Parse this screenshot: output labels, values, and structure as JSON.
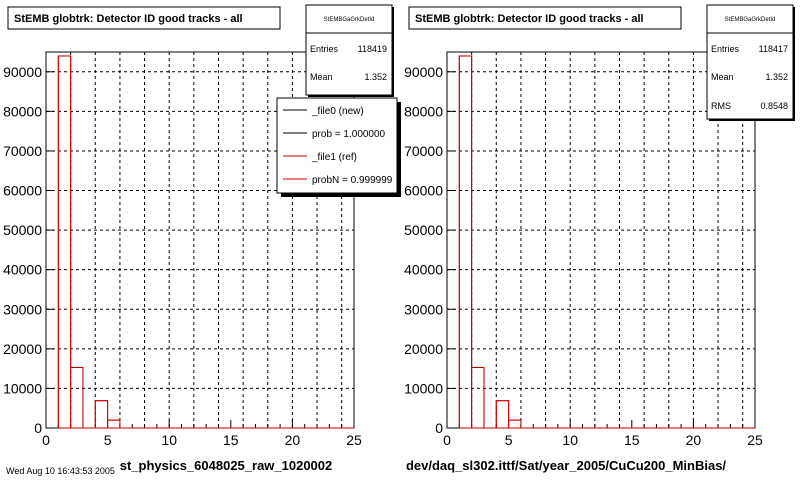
{
  "chart_data": [
    {
      "type": "bar",
      "title": "StEMB globtrk: Detector ID good tracks - all",
      "xlabel": "st_physics_6048025_raw_1020002",
      "xlim": [
        0,
        25
      ],
      "ylim": [
        0,
        95000
      ],
      "xticks": [
        0,
        5,
        10,
        15,
        20,
        25
      ],
      "yticks": [
        0,
        10000,
        20000,
        30000,
        40000,
        50000,
        60000,
        70000,
        80000,
        90000
      ],
      "ytick_labels": [
        "0",
        "10000",
        "20000",
        "30000",
        "40000",
        "50000",
        "60000",
        "70000",
        "80000",
        "90000"
      ],
      "bin_width": 1,
      "bin_edges_start": 1,
      "values": [
        94000,
        15300,
        0,
        6900,
        2000,
        0,
        0,
        0,
        0,
        0,
        0,
        0,
        0,
        0,
        0,
        0,
        0,
        0,
        0,
        0,
        0,
        0,
        0,
        0
      ],
      "stats": {
        "name": "StEMBGaGrkDetId",
        "entries_label": "Entries",
        "entries": "118419",
        "mean_label": "Mean",
        "mean": "1.352"
      },
      "legend": {
        "position": "top-right",
        "entries": [
          {
            "label": "_file0 (new)",
            "color": "#000000"
          },
          {
            "label": "prob = 1.000000",
            "color": "#000000"
          },
          {
            "label": "_file1 (ref)",
            "color": "#cc0000"
          },
          {
            "label": "probN = 0.999999",
            "color": "#cc0000"
          }
        ]
      },
      "grid": true,
      "color": "#cc0000"
    },
    {
      "type": "bar",
      "title": "StEMB globtrk: Detector ID good tracks - all",
      "xlabel": "dev/daq_sl302.ittf/Sat/year_2005/CuCu200_MinBias/",
      "xlim": [
        0,
        25
      ],
      "ylim": [
        0,
        95000
      ],
      "xticks": [
        0,
        5,
        10,
        15,
        20,
        25
      ],
      "yticks": [
        0,
        10000,
        20000,
        30000,
        40000,
        50000,
        60000,
        70000,
        80000,
        90000
      ],
      "ytick_labels": [
        "0",
        "10000",
        "20000",
        "30000",
        "40000",
        "50000",
        "60000",
        "70000",
        "80000",
        "90000"
      ],
      "bin_width": 1,
      "bin_edges_start": 1,
      "values": [
        94000,
        15300,
        0,
        6900,
        2000,
        0,
        0,
        0,
        0,
        0,
        0,
        0,
        0,
        0,
        0,
        0,
        0,
        0,
        0,
        0,
        0,
        0,
        0,
        0
      ],
      "stats": {
        "name": "StEMBGaGrkDetId",
        "entries_label": "Entries",
        "entries": "118417",
        "mean_label": "Mean",
        "mean": "1.352",
        "rms_label": "RMS",
        "rms": "0.8548"
      },
      "grid": true,
      "color": "#cc0000"
    }
  ],
  "footer_text": "Wed Aug 10 16:43:53 2005"
}
